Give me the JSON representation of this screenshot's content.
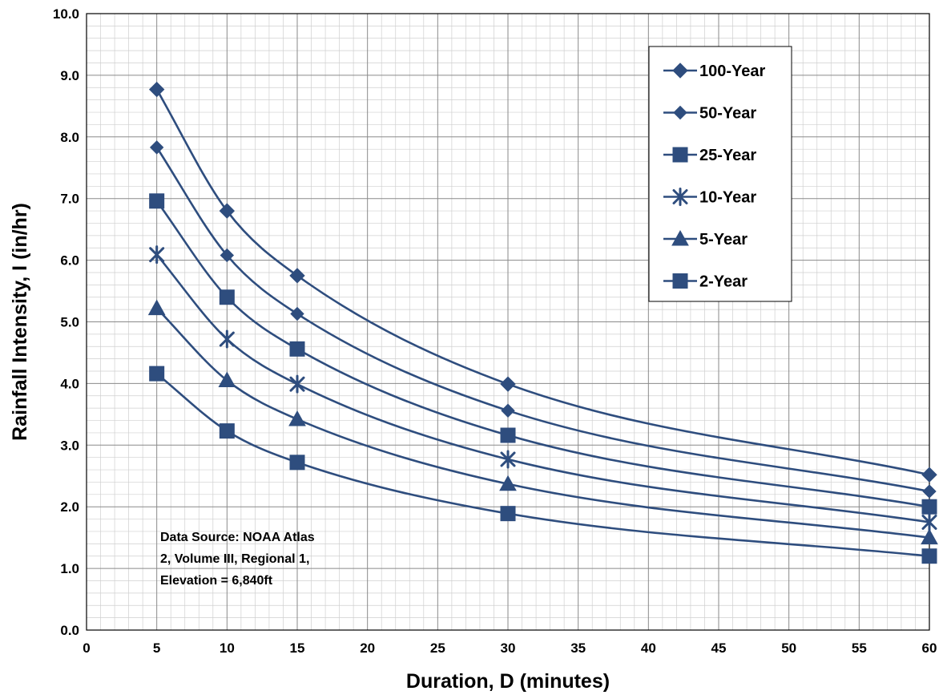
{
  "chart_data": {
    "type": "line",
    "xlabel": "Duration,  D (minutes)",
    "ylabel": "Rainfall Intensity, I (in/hr)",
    "xlim": [
      0,
      60
    ],
    "ylim": [
      0,
      10
    ],
    "x_ticks": [
      "0",
      "5",
      "10",
      "15",
      "20",
      "25",
      "30",
      "35",
      "40",
      "45",
      "50",
      "55",
      "60"
    ],
    "y_ticks": [
      "0.0",
      "1.0",
      "2.0",
      "3.0",
      "4.0",
      "5.0",
      "6.0",
      "7.0",
      "8.0",
      "9.0",
      "10.0"
    ],
    "grid": true,
    "legend_position": "top-right",
    "line_color": "#2e4d7e",
    "x": [
      5,
      10,
      15,
      30,
      60
    ],
    "series": [
      {
        "name": "100-Year",
        "marker": "diamond",
        "values": [
          8.77,
          6.8,
          5.75,
          3.99,
          2.52
        ]
      },
      {
        "name": "50-Year",
        "marker": "diamond-small",
        "values": [
          7.83,
          6.08,
          5.13,
          3.56,
          2.25
        ]
      },
      {
        "name": "25-Year",
        "marker": "square",
        "values": [
          6.96,
          5.4,
          4.56,
          3.16,
          2.0
        ]
      },
      {
        "name": "10-Year",
        "marker": "star",
        "values": [
          6.09,
          4.72,
          3.99,
          2.77,
          1.75
        ]
      },
      {
        "name": "5-Year",
        "marker": "triangle",
        "values": [
          5.22,
          4.05,
          3.42,
          2.37,
          1.5
        ]
      },
      {
        "name": "2-Year",
        "marker": "square",
        "values": [
          4.16,
          3.23,
          2.72,
          1.89,
          1.2
        ]
      }
    ],
    "annotation": [
      "Data Source: NOAA Atlas",
      "2, Volume III, Regional 1,",
      "Elevation = 6,840ft"
    ]
  }
}
